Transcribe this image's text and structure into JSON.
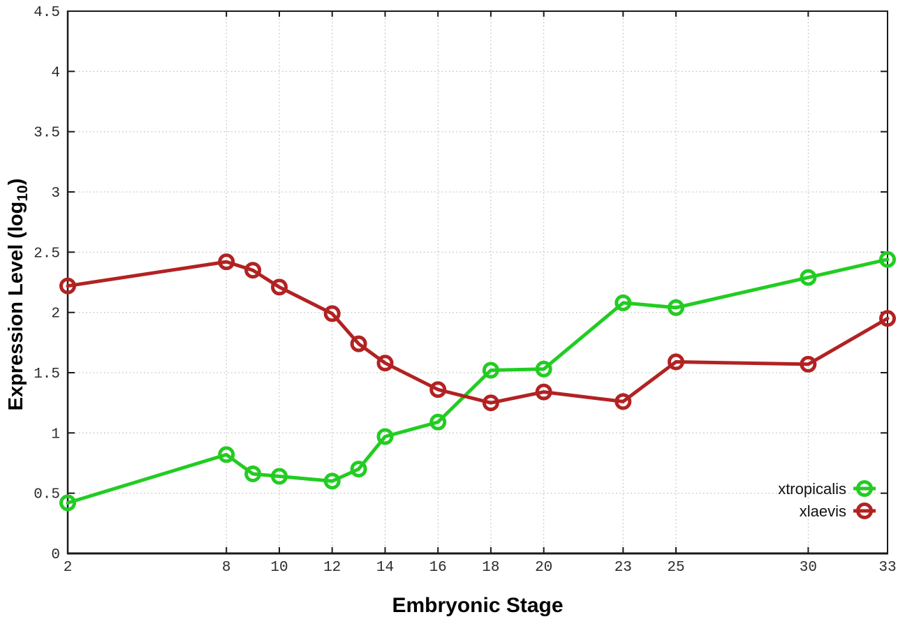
{
  "chart_data": {
    "type": "line",
    "title": "",
    "xlabel": "Embryonic Stage",
    "ylabel": "Expression Level (log10)",
    "ylabel_parts": {
      "prefix": "Expression Level (log",
      "sub": "10",
      "suffix": ")"
    },
    "x": [
      2,
      8,
      9,
      10,
      12,
      13,
      14,
      16,
      18,
      20,
      23,
      25,
      30,
      33
    ],
    "x_tick_values": [
      2,
      8,
      10,
      12,
      14,
      16,
      18,
      20,
      23,
      25,
      30,
      33
    ],
    "x_tick_labels": [
      "2",
      "8",
      "10",
      "12",
      "14",
      "16",
      "18",
      "20",
      "23",
      "25",
      "30",
      "33"
    ],
    "y_tick_values": [
      0,
      0.5,
      1,
      1.5,
      2,
      2.5,
      3,
      3.5,
      4,
      4.5
    ],
    "y_tick_labels": [
      "0",
      "0.5",
      "1",
      "1.5",
      "2",
      "2.5",
      "3",
      "3.5",
      "4",
      "4.5"
    ],
    "xlim": [
      2,
      33
    ],
    "ylim": [
      0,
      4.5
    ],
    "grid": true,
    "grid_style": "dotted",
    "grid_color": "#b8b8b8",
    "axis_color": "#1a1a1a",
    "tick_text_color": "#2b2b2b",
    "legend": {
      "position": "bottom-right-inside",
      "entries": [
        "xtropicalis",
        "xlaevis"
      ]
    },
    "series": [
      {
        "name": "xtropicalis",
        "color": "#22cc22",
        "marker": "open-circle",
        "values": [
          0.42,
          0.82,
          0.66,
          0.64,
          0.6,
          0.7,
          0.97,
          1.09,
          1.52,
          1.53,
          2.08,
          2.04,
          2.29,
          2.44
        ]
      },
      {
        "name": "xlaevis",
        "color": "#b22222",
        "marker": "open-circle",
        "values": [
          2.22,
          2.42,
          2.35,
          2.21,
          1.99,
          1.74,
          1.58,
          1.36,
          1.25,
          1.34,
          1.26,
          1.59,
          1.57,
          1.95
        ]
      }
    ]
  }
}
